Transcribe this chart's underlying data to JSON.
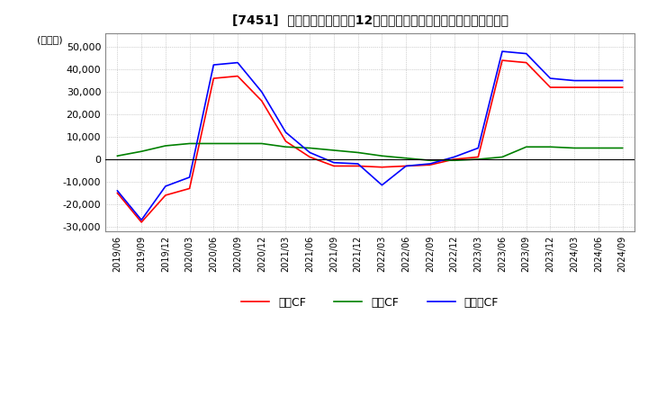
{
  "title": "[7451]  キャッシュフローの12か月移動合計の対前年同期増減額の推移",
  "ylabel": "(百万円)",
  "ylim": [
    -32000,
    56000
  ],
  "yticks": [
    -30000,
    -20000,
    -10000,
    0,
    10000,
    20000,
    30000,
    40000,
    50000
  ],
  "x_labels": [
    "2019/06",
    "2019/09",
    "2019/12",
    "2020/03",
    "2020/06",
    "2020/09",
    "2020/12",
    "2021/03",
    "2021/06",
    "2021/09",
    "2021/12",
    "2022/03",
    "2022/06",
    "2022/09",
    "2022/12",
    "2023/03",
    "2023/06",
    "2023/09",
    "2023/12",
    "2024/03",
    "2024/06",
    "2024/09"
  ],
  "operating_cf": [
    -15000,
    -28000,
    -16000,
    -13000,
    36000,
    37000,
    26000,
    8000,
    1000,
    -3000,
    -3000,
    -3500,
    -3000,
    -2500,
    0,
    1000,
    44000,
    43000,
    32000,
    32000,
    32000,
    32000
  ],
  "investing_cf": [
    1500,
    3500,
    6000,
    7000,
    7000,
    7000,
    7000,
    5500,
    5000,
    4000,
    3000,
    1500,
    500,
    -500,
    -500,
    0,
    1000,
    5500,
    5500,
    5000,
    5000,
    5000
  ],
  "free_cf": [
    -14000,
    -27000,
    -12000,
    -8000,
    42000,
    43000,
    30000,
    12000,
    3000,
    -1500,
    -2000,
    -11500,
    -3000,
    -2000,
    1000,
    5000,
    48000,
    47000,
    36000,
    35000,
    35000,
    35000
  ],
  "operating_color": "#FF0000",
  "investing_color": "#008000",
  "free_color": "#0000FF",
  "legend_labels": [
    "営業CF",
    "投資CF",
    "フリーCF"
  ],
  "background_color": "#FFFFFF",
  "grid_color": "#AAAAAA"
}
